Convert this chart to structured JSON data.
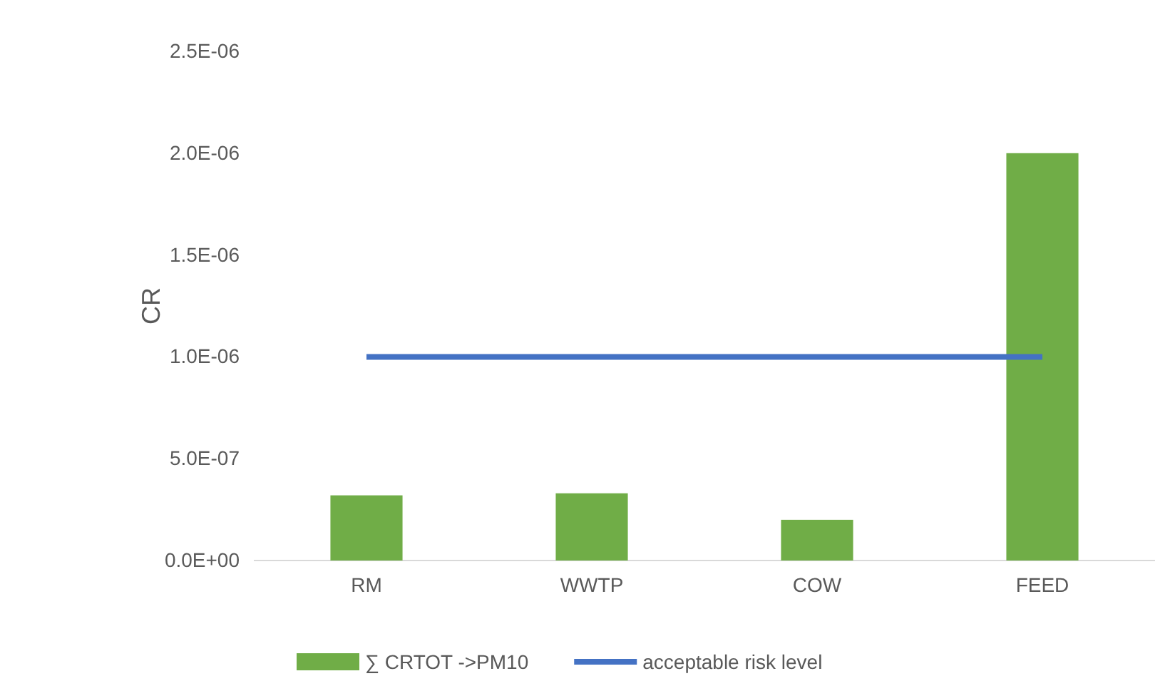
{
  "chart_data": {
    "type": "bar",
    "ylabel": "CR",
    "categories": [
      "RM",
      "WWTP",
      "COW",
      "FEED"
    ],
    "series": [
      {
        "name": "∑ CRTOT ->PM10",
        "color": "#70ad47",
        "values": [
          3.2e-07,
          3.3e-07,
          2e-07,
          2e-06
        ]
      },
      {
        "name": "acceptable risk level",
        "type": "line",
        "color": "#4472c4",
        "values": [
          1e-06,
          1e-06,
          1e-06,
          1e-06
        ]
      }
    ],
    "ylim": [
      0,
      2.5e-06
    ],
    "yticks": [
      {
        "value": 0,
        "label": "0.0E+00"
      },
      {
        "value": 5e-07,
        "label": "5.0E-07"
      },
      {
        "value": 1e-06,
        "label": "1.0E-06"
      },
      {
        "value": 1.5e-06,
        "label": "1.5E-06"
      },
      {
        "value": 2e-06,
        "label": "2.0E-06"
      },
      {
        "value": 2.5e-06,
        "label": "2.5E-06"
      }
    ],
    "grid": false,
    "legend": "bottom",
    "marker": "none"
  }
}
